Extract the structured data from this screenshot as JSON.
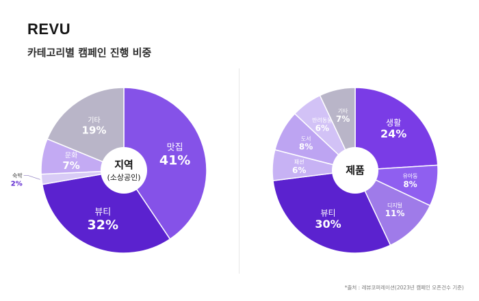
{
  "brand": "REVU",
  "subtitle": "카테고리별 캠페인 진행 비중",
  "footnote": "*출처 : 레뷰코퍼레이션(2023년 캠페인 오픈건수 기준)",
  "chart_data": [
    {
      "type": "pie",
      "center_label": [
        "지역",
        "(소상공인)"
      ],
      "slices": [
        {
          "label": "맛집",
          "value": 41,
          "display": "41%",
          "color": "#8552e8"
        },
        {
          "label": "뷰티",
          "value": 32,
          "display": "32%",
          "color": "#5b22cf"
        },
        {
          "label": "숙박",
          "value": 2,
          "display": "2%",
          "color": "#d8cbf6"
        },
        {
          "label": "문화",
          "value": 7,
          "display": "7%",
          "color": "#c3aaf3"
        },
        {
          "label": "기타",
          "value": 19,
          "display": "19%",
          "color": "#b9b5c8"
        }
      ]
    },
    {
      "type": "pie",
      "center_label": [
        "제품"
      ],
      "slices": [
        {
          "label": "생활",
          "value": 24,
          "display": "24%",
          "color": "#7a3ce6"
        },
        {
          "label": "유아동",
          "value": 8,
          "display": "8%",
          "color": "#8f5ff0"
        },
        {
          "label": "디지털",
          "value": 11,
          "display": "11%",
          "color": "#9f7be9"
        },
        {
          "label": "뷰티",
          "value": 30,
          "display": "30%",
          "color": "#5b22cf"
        },
        {
          "label": "패션",
          "value": 6,
          "display": "6%",
          "color": "#c7b2f4"
        },
        {
          "label": "도서",
          "value": 8,
          "display": "8%",
          "color": "#bda4f2"
        },
        {
          "label": "반려동물",
          "value": 6,
          "display": "6%",
          "color": "#d2c2f6"
        },
        {
          "label": "기타",
          "value": 7,
          "display": "7%",
          "color": "#b9b5c8"
        }
      ]
    }
  ]
}
